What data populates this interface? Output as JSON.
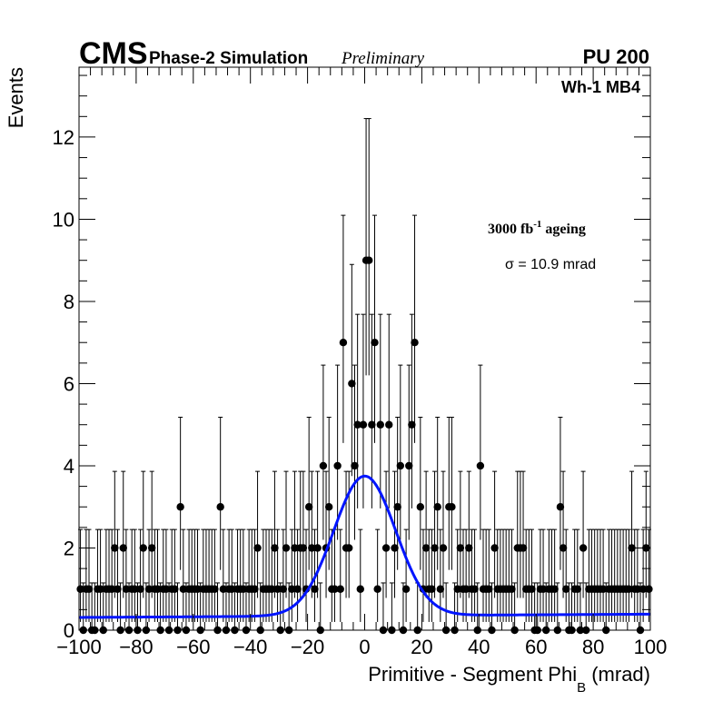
{
  "header": {
    "experiment": "CMS",
    "label": "Phase-2 Simulation",
    "status": "Preliminary",
    "pileup": "PU 200",
    "region": "Wh-1 MB4"
  },
  "annotations": {
    "ageing_value": "3000 fb",
    "ageing_exp": "-1",
    "ageing_word": " ageing",
    "sigma": "σ = 10.9 mrad"
  },
  "chart_data": {
    "type": "scatter",
    "title": "",
    "xlabel_main": "Primitive - Segment Phi",
    "xlabel_sub": "B",
    "xlabel_unit": " (mrad)",
    "ylabel": "Events",
    "xlim": [
      -100,
      100
    ],
    "ylim": [
      0,
      13.7
    ],
    "x_ticks": [
      -100,
      -80,
      -60,
      -40,
      -20,
      0,
      20,
      40,
      60,
      80,
      100
    ],
    "x_tick_labels": [
      "−100",
      "−80",
      "−60",
      "−40",
      "−20",
      "0",
      "20",
      "40",
      "60",
      "80",
      "100"
    ],
    "y_ticks": [
      0,
      2,
      4,
      6,
      8,
      10,
      12
    ],
    "y_tick_labels": [
      "0",
      "2",
      "4",
      "6",
      "8",
      "10",
      "12"
    ],
    "bin_width": 1,
    "histogram_counts": [
      1,
      0,
      1,
      1,
      0,
      0,
      1,
      1,
      0,
      1,
      1,
      1,
      2,
      1,
      0,
      2,
      1,
      0,
      1,
      1,
      0,
      1,
      2,
      0,
      1,
      2,
      1,
      1,
      0,
      1,
      1,
      0,
      1,
      1,
      0,
      3,
      1,
      0,
      1,
      1,
      1,
      1,
      0,
      1,
      1,
      1,
      1,
      1,
      0,
      3,
      1,
      0,
      1,
      1,
      0,
      1,
      1,
      1,
      0,
      1,
      1,
      1,
      2,
      0,
      1,
      1,
      1,
      1,
      2,
      1,
      0,
      1,
      2,
      0,
      1,
      2,
      1,
      2,
      2,
      1,
      3,
      2,
      1,
      2,
      0,
      4,
      2,
      3,
      1,
      1,
      4,
      1,
      7,
      2,
      2,
      6,
      4,
      5,
      1,
      5,
      9,
      9,
      5,
      7,
      1,
      5,
      0,
      2,
      5,
      0,
      2,
      3,
      4,
      0,
      1,
      4,
      5,
      7,
      0,
      3,
      1,
      2,
      1,
      1,
      2,
      3,
      1,
      2,
      0,
      3,
      3,
      0,
      1,
      2,
      1,
      1,
      2,
      1,
      1,
      0,
      4,
      1,
      1,
      1,
      0,
      2,
      1,
      1,
      1,
      1,
      1,
      1,
      0,
      2,
      2,
      2,
      1,
      1,
      1,
      0,
      0,
      1,
      1,
      0,
      1,
      1,
      1,
      0,
      3,
      2,
      1,
      0,
      0,
      1,
      1,
      0,
      2,
      0,
      1,
      1,
      1,
      1,
      1,
      1,
      0,
      1,
      1,
      1,
      1,
      1,
      1,
      1,
      1,
      2,
      1,
      1,
      0,
      1,
      2,
      1
    ],
    "fit": {
      "model": "gaussian plus constant",
      "amplitude": 3.4,
      "mean": 0,
      "sigma": 10.9,
      "constant": 0.35
    },
    "colors": {
      "data": "#000000",
      "fit": "#0015ff"
    },
    "legend": "none",
    "grid": false
  }
}
